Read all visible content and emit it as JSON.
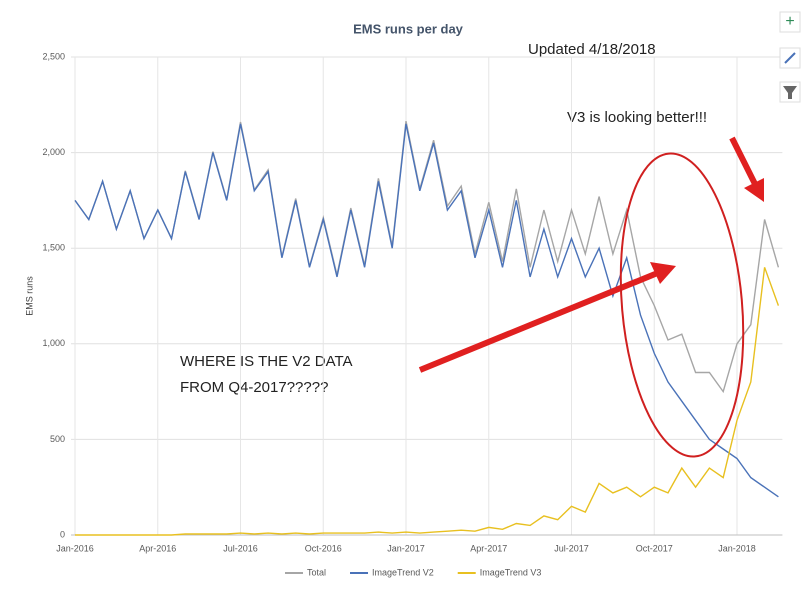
{
  "chart_data": {
    "type": "line",
    "title": "EMS runs per day",
    "y_label": "EMS runs",
    "annotations": [
      "Updated 4/18/2018",
      "V3 is looking better!!!",
      [
        "WHERE IS THE V2 DATA",
        "FROM Q4-2017?????"
      ]
    ],
    "categories": [
      "Jan-2016",
      null,
      null,
      null,
      null,
      null,
      "Apr-2016",
      null,
      null,
      null,
      null,
      null,
      "Jul-2016",
      null,
      null,
      null,
      null,
      null,
      "Oct-2016",
      null,
      null,
      null,
      null,
      null,
      "Jan-2017",
      null,
      null,
      null,
      null,
      null,
      "Apr-2017",
      null,
      null,
      null,
      null,
      null,
      "Jul-2017",
      null,
      null,
      null,
      null,
      null,
      "Oct-2017",
      null,
      null,
      null,
      null,
      null,
      "Jan-2018",
      null,
      null,
      null
    ],
    "series": [
      {
        "name": "Total",
        "color": "#a6a6a6",
        "values": [
          1750,
          1650,
          1850,
          1600,
          1800,
          1550,
          1700,
          1550,
          1905,
          1655,
          2005,
          1755,
          2160,
          1805,
          1910,
          1455,
          1760,
          1405,
          1660,
          1360,
          1710,
          1410,
          1865,
          1510,
          2165,
          1810,
          2065,
          1720,
          1825,
          1470,
          1740,
          1430,
          1810,
          1400,
          1700,
          1430,
          1700,
          1470,
          1770,
          1470,
          1700,
          1350,
          1200,
          1020,
          1050,
          850,
          850,
          750,
          1000,
          1100,
          1650,
          1400
        ]
      },
      {
        "name": "ImageTrend V2",
        "color": "#4a72b8",
        "values": [
          1750,
          1650,
          1850,
          1600,
          1800,
          1550,
          1700,
          1550,
          1900,
          1650,
          2000,
          1750,
          2150,
          1800,
          1900,
          1450,
          1750,
          1400,
          1650,
          1350,
          1700,
          1400,
          1850,
          1500,
          2150,
          1800,
          2050,
          1700,
          1800,
          1450,
          1700,
          1400,
          1750,
          1350,
          1600,
          1350,
          1550,
          1350,
          1500,
          1250,
          1450,
          1150,
          950,
          800,
          700,
          600,
          500,
          450,
          400,
          300,
          250,
          200
        ]
      },
      {
        "name": "ImageTrend V3",
        "color": "#e8c020",
        "values": [
          0,
          0,
          0,
          0,
          0,
          0,
          0,
          0,
          5,
          5,
          5,
          5,
          10,
          5,
          10,
          5,
          10,
          5,
          10,
          10,
          10,
          10,
          15,
          10,
          15,
          10,
          15,
          20,
          25,
          20,
          40,
          30,
          60,
          50,
          100,
          80,
          150,
          120,
          270,
          220,
          250,
          200,
          250,
          220,
          350,
          250,
          350,
          300,
          600,
          800,
          1400,
          1200
        ]
      }
    ],
    "ylim": [
      0,
      2500
    ],
    "yticks": [
      0,
      500,
      {
        "value": 1000,
        "label": "1,000"
      },
      {
        "value": 1500,
        "label": "1,500"
      },
      {
        "value": 2000,
        "label": "2,000"
      },
      {
        "value": 2500,
        "label": "2,500"
      }
    ],
    "grid": true,
    "legend": "bottom"
  }
}
